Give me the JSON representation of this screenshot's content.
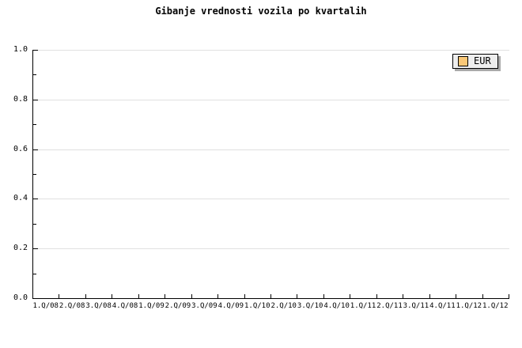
{
  "title": "Gibanje vrednosti vozila po kvartalih",
  "legend": {
    "position": "top-right",
    "items": [
      {
        "label": "EUR",
        "color": "#FAC878"
      }
    ]
  },
  "colors": {
    "background": "#FFFFFF",
    "axis": "#000000",
    "gridline": "#E0E0E0",
    "legend_background": "#EEEEEE",
    "legend_border": "#000000",
    "legend_shadow": "#AAAAAA",
    "series_eur": "#FAC878"
  },
  "chart_data": {
    "type": "line",
    "title": "Gibanje vrednosti vozila po kvartalih",
    "xlabel": "",
    "ylabel": "",
    "categories": [
      "1.Q/08",
      "2.Q/08",
      "3.Q/08",
      "4.Q/08",
      "1.Q/09",
      "2.Q/09",
      "3.Q/09",
      "4.Q/09",
      "1.Q/10",
      "2.Q/10",
      "3.Q/10",
      "4.Q/10",
      "1.Q/11",
      "2.Q/11",
      "3.Q/11",
      "4.Q/11",
      "1.Q/12",
      "1.Q/12"
    ],
    "series": [
      {
        "name": "EUR",
        "color": "#FAC878",
        "values": []
      }
    ],
    "ylim": [
      0.0,
      1.0
    ],
    "yticks": [
      0.0,
      0.2,
      0.4,
      0.6,
      0.8,
      1.0
    ],
    "ytick_labels": [
      "0.0",
      "0.2",
      "0.4",
      "0.6",
      "0.8",
      "1.0"
    ],
    "y_minor_ticks": [
      0.1,
      0.3,
      0.5,
      0.7,
      0.9
    ],
    "grid": "horizontal",
    "legend_position": "top-right"
  }
}
